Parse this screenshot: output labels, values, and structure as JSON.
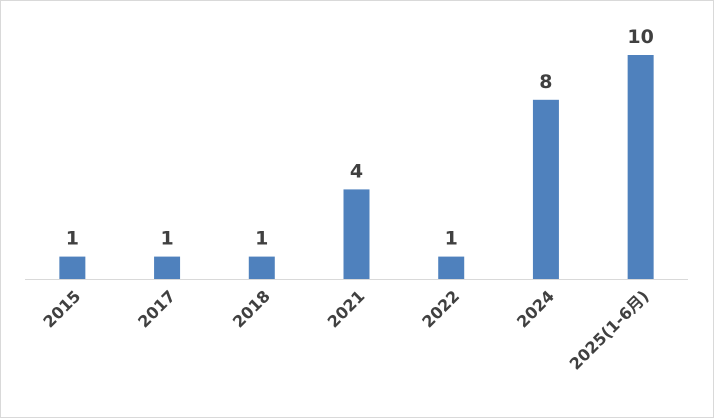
{
  "chart_data": {
    "type": "bar",
    "categories": [
      "2015",
      "2017",
      "2018",
      "2021",
      "2022",
      "2024",
      "2025(1-6月)"
    ],
    "values": [
      1,
      1,
      1,
      4,
      1,
      8,
      10
    ],
    "color": "#4f81bd"
  }
}
